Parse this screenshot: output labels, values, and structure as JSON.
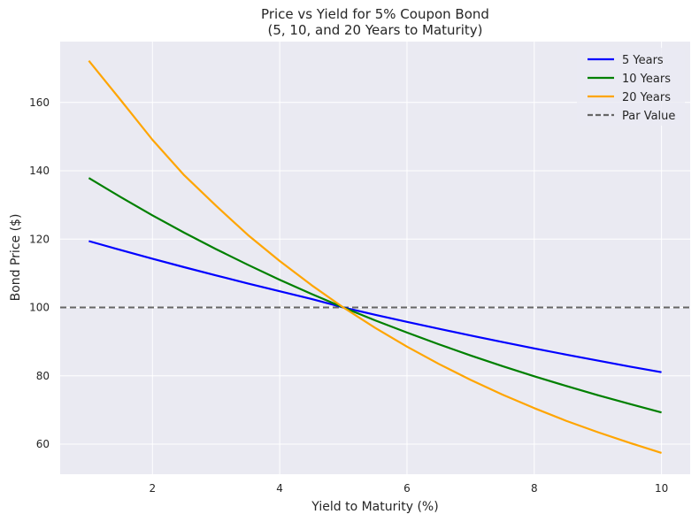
{
  "chart_data": {
    "type": "line",
    "title": "Price vs Yield for 5% Coupon Bond",
    "subtitle": "(5, 10, and 20 Years to Maturity)",
    "xlabel": "Yield to Maturity (%)",
    "ylabel": "Bond Price ($)",
    "xlim": [
      0.55,
      10.45
    ],
    "ylim": [
      51.2,
      177.8
    ],
    "xticks": [
      2,
      4,
      6,
      8,
      10
    ],
    "yticks": [
      60,
      80,
      100,
      120,
      140,
      160
    ],
    "grid": true,
    "legend_position": "top-right",
    "x": [
      1,
      1.5,
      2,
      2.5,
      3,
      3.5,
      4,
      4.5,
      5,
      5.5,
      6,
      6.5,
      7,
      7.5,
      8,
      8.5,
      9,
      9.5,
      10
    ],
    "series": [
      {
        "name": "5 Years",
        "color": "#0000ff",
        "style": "solid",
        "values": [
          119.41,
          116.81,
          114.26,
          111.79,
          109.37,
          107.02,
          104.73,
          102.5,
          100.0,
          97.86,
          95.79,
          93.77,
          91.8,
          89.88,
          88.02,
          86.2,
          84.44,
          82.72,
          81.05
        ]
      },
      {
        "name": "10 Years",
        "color": "#008000",
        "style": "solid",
        "values": [
          137.89,
          132.3,
          126.95,
          121.88,
          117.06,
          112.48,
          108.11,
          103.96,
          100.0,
          96.23,
          92.64,
          89.22,
          85.95,
          82.84,
          79.87,
          77.03,
          74.33,
          71.75,
          69.28
        ]
      },
      {
        "name": "20 Years",
        "color": "#ffa500",
        "style": "solid",
        "values": [
          172.18,
          160.71,
          149.05,
          138.67,
          129.75,
          121.2,
          113.59,
          106.53,
          100.0,
          94.02,
          88.53,
          83.49,
          78.81,
          74.51,
          70.55,
          66.85,
          63.49,
          60.36,
          57.43
        ]
      }
    ],
    "reference_line": {
      "name": "Par Value",
      "y": 100,
      "color": "#666666",
      "style": "dashed"
    }
  }
}
